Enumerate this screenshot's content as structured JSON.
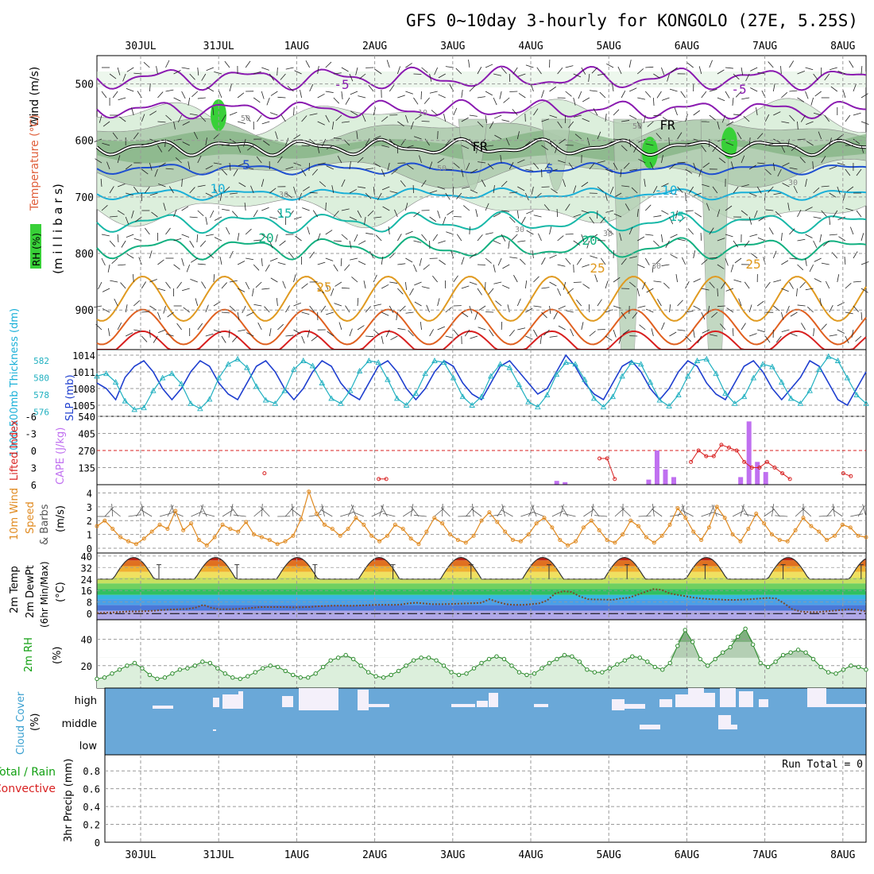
{
  "chart_data": {
    "title": "GFS 0~10day 3-hourly for KONGOLO (27E, 5.25S)",
    "type": "meteogram",
    "x_tick_labels": [
      "30JUL",
      "31JUL",
      "1AUG",
      "2AUG",
      "3AUG",
      "4AUG",
      "5AUG",
      "6AUG",
      "7AUG",
      "8AUG"
    ],
    "colors": {
      "axis": "#000000",
      "grid": "#9a9a9a",
      "purple": "#8a1ab0",
      "blue": "#1f4fd0",
      "cyan": "#1ab0d8",
      "teal": "#18b8a8",
      "green": "#12b080",
      "orange": "#e09a20",
      "dorange": "#e06020",
      "red": "#d82020",
      "rh_light": "#dcefdc",
      "rh_mid": "#b4cfb4",
      "rh_dark": "#7fb07f",
      "rh_bright": "#38d038",
      "cloud_blue": "#6aa8d8",
      "cape": "#c070f0",
      "wind_orange": "#e08a20",
      "slp": "#1f3fcf",
      "thick": "#20b0c0"
    },
    "upper_air": {
      "y_label": "(m i l l i b a r s)",
      "y_label_parts": {
        "rh": "RH (%)",
        "temperature": "Temperature (°C)",
        "wind": "Wind (m/s)"
      },
      "y_ticks": [
        500,
        600,
        700,
        800,
        900
      ],
      "isotherm_labels": [
        "-5",
        "-5",
        "5",
        "5",
        "10",
        "-10",
        "15",
        "15",
        "20",
        "20",
        "25",
        "25",
        "25",
        "FR",
        "FR",
        "50",
        "50",
        "50",
        "30",
        "30",
        "30",
        "10",
        "30",
        "30"
      ]
    },
    "slp_panel": {
      "left_label": "1000-500mb Thickness (dm)",
      "right_label": "SLP (mb)",
      "thickness_ticks": [
        576,
        578,
        580,
        582
      ],
      "slp_ticks": [
        1005,
        1008,
        1011,
        1014
      ],
      "slp_values": [
        1009,
        1008,
        1006,
        1010,
        1012,
        1013,
        1011,
        1008,
        1006,
        1008,
        1011,
        1013,
        1012,
        1009,
        1007,
        1006,
        1009,
        1012,
        1013,
        1011,
        1008,
        1006,
        1008,
        1011,
        1013,
        1012,
        1009,
        1007,
        1006,
        1009,
        1012,
        1013,
        1011,
        1008,
        1006,
        1008,
        1011,
        1013,
        1012,
        1009,
        1007,
        1006,
        1009,
        1012,
        1013,
        1011,
        1009,
        1007,
        1008,
        1011,
        1014,
        1012,
        1009,
        1007,
        1006,
        1009,
        1012,
        1013,
        1011,
        1008,
        1006,
        1008,
        1011,
        1013,
        1012,
        1009,
        1007,
        1006,
        1009,
        1012,
        1013,
        1011,
        1008,
        1006,
        1008,
        1010,
        1013,
        1012,
        1009,
        1006,
        1005,
        1008,
        1011
      ],
      "thickness_values": [
        580.2,
        580.5,
        579.5,
        577.3,
        576.3,
        576.5,
        578.5,
        580,
        580.5,
        579.3,
        577,
        576.4,
        577.5,
        580,
        581.6,
        582.2,
        581.2,
        579,
        577.4,
        577,
        578.5,
        581,
        582,
        581.4,
        579.4,
        577.6,
        577,
        578.5,
        580.8,
        582,
        581.8,
        579.8,
        577.6,
        576.8,
        578.2,
        580.5,
        582,
        581.8,
        580,
        577.8,
        576.8,
        577.8,
        580.2,
        581.6,
        581.2,
        579.2,
        577.2,
        576.6,
        578,
        580.4,
        581.8,
        581.6,
        579.8,
        577.6,
        576.6,
        577.8,
        580.2,
        581.8,
        581.6,
        579.5,
        577.4,
        576.7,
        578,
        580.2,
        582,
        582.2,
        580.5,
        578.2,
        577,
        577.8,
        580,
        581.6,
        581.3,
        579.5,
        577.6,
        577,
        578.5,
        581,
        582.5,
        582,
        580,
        578,
        577
      ]
    },
    "cape_panel": {
      "left_label": "Lifted Index",
      "right_label": "CAPE (J/kg)",
      "li_ticks": [
        "-6",
        "-3",
        "0",
        "3",
        "6"
      ],
      "cape_ticks": [
        135,
        270,
        405,
        540
      ],
      "cape_values": [
        0,
        0,
        0,
        0,
        0,
        0,
        0,
        0,
        0,
        0,
        0,
        0,
        0,
        0,
        0,
        0,
        0,
        0,
        0,
        0,
        0,
        0,
        0,
        0,
        0,
        0,
        0,
        0,
        0,
        0,
        0,
        0,
        0,
        0,
        0,
        0,
        0,
        0,
        0,
        0,
        0,
        0,
        0,
        0,
        0,
        0,
        0,
        0,
        0,
        0,
        0,
        0,
        0,
        0,
        0,
        30,
        20,
        0,
        0,
        0,
        0,
        0,
        0,
        0,
        0,
        0,
        40,
        270,
        120,
        60,
        0,
        0,
        0,
        0,
        0,
        0,
        0,
        60,
        500,
        180,
        100,
        0,
        0,
        0,
        0,
        0,
        0,
        0,
        0,
        0,
        0,
        0,
        0
      ],
      "li_values": [
        6,
        6,
        6,
        6,
        6,
        6,
        6,
        6,
        6,
        6,
        6,
        6,
        6,
        6,
        6,
        6,
        6,
        6,
        6,
        6,
        6,
        6,
        4,
        6,
        6,
        6,
        6,
        6,
        6,
        6,
        6,
        6,
        6,
        6,
        6,
        6,
        6,
        5,
        5,
        6,
        6,
        6,
        6,
        6,
        6,
        6,
        6,
        6,
        6,
        6,
        6,
        6,
        6,
        6,
        6,
        6,
        6,
        6,
        6,
        6,
        6,
        6,
        6,
        6,
        6,
        6,
        1.4,
        1.4,
        5,
        6,
        6,
        6,
        6,
        6,
        6,
        6,
        6,
        6,
        2,
        0,
        1,
        1,
        -1,
        -0.5,
        0,
        2,
        3,
        3,
        2,
        3,
        4,
        5,
        6,
        6,
        6,
        6,
        6,
        6,
        4,
        4.5,
        6,
        6
      ]
    },
    "wind_panel": {
      "label": "10m Wind Speed & Barbs (m/s)",
      "label_parts": {
        "a": "10m Wind",
        "b": "Speed",
        "c": "& Barbs"
      },
      "y_ticks": [
        0,
        1,
        2,
        3,
        4
      ],
      "values": [
        1.6,
        2,
        1.4,
        0.8,
        0.5,
        0.3,
        0.7,
        1.2,
        1.7,
        1.4,
        2.7,
        1.3,
        1.8,
        0.6,
        0.2,
        0.8,
        1.7,
        1.4,
        1.2,
        1.9,
        1.0,
        0.8,
        0.6,
        0.3,
        0.5,
        0.9,
        2.1,
        4.1,
        2.5,
        1.7,
        1.4,
        0.9,
        1.4,
        2.2,
        1.7,
        0.9,
        0.5,
        0.9,
        1.7,
        1.4,
        0.7,
        0.3,
        1.2,
        2.2,
        1.8,
        1.0,
        0.6,
        0.4,
        0.9,
        2.0,
        2.6,
        1.9,
        1.2,
        0.6,
        0.5,
        1.0,
        1.8,
        2.2,
        1.5,
        0.6,
        0.2,
        0.5,
        1.5,
        2.0,
        1.3,
        0.6,
        0.4,
        1.0,
        2.0,
        1.6,
        0.8,
        0.4,
        0.9,
        1.7,
        2.9,
        2.2,
        1.2,
        0.6,
        1.5,
        3.0,
        2.2,
        1.0,
        0.5,
        1.4,
        2.5,
        1.8,
        1.0,
        0.6,
        0.5,
        1.3,
        2.2,
        1.6,
        1.2,
        0.6,
        0.9,
        1.7,
        1.5,
        0.9,
        0.8
      ]
    },
    "temp_panel": {
      "label_parts": {
        "temp": "2m Temp",
        "dewpt": "2m DewPt",
        "minmax": "(6hr Min/Max)",
        "unit": "(°C)"
      },
      "y_ticks": [
        0,
        8,
        16,
        24,
        32,
        40
      ],
      "dewpoint": [
        0.3,
        0.5,
        0.8,
        1.2,
        1.5,
        1.5,
        1.7,
        2,
        2.5,
        2.8,
        3,
        3.2,
        4,
        6,
        4,
        3,
        3,
        3.2,
        3.5,
        4,
        4.5,
        4.5,
        4.5,
        4.5,
        4.3,
        4.4,
        4.6,
        5,
        5.3,
        5.5,
        5.5,
        5.4,
        5.6,
        5.8,
        6,
        6,
        6,
        6.2,
        7,
        7.5,
        7,
        6.5,
        6.5,
        6.6,
        6.8,
        7,
        7.2,
        7.5,
        10,
        8,
        6.5,
        6,
        6,
        6.5,
        7,
        9,
        14,
        15.5,
        15,
        12,
        10,
        9.8,
        9.7,
        9.5,
        10.5,
        11,
        13,
        15,
        17,
        16.5,
        14,
        13,
        12,
        11,
        10.5,
        10,
        9.8,
        9.5,
        9.5,
        9.7,
        10,
        10.5,
        10.8,
        10.5,
        7,
        3,
        1.5,
        1,
        1,
        1.5,
        2,
        2.5,
        3,
        2.5,
        1.5
      ]
    },
    "rh_panel": {
      "label": "2m RH",
      "unit": "(%)",
      "y_ticks": [
        20,
        40
      ],
      "values": [
        10,
        11,
        14,
        17,
        20,
        22,
        18,
        13,
        10,
        11,
        14,
        17,
        18,
        20,
        23,
        22,
        18,
        14,
        11,
        10,
        12,
        15,
        18,
        20,
        19,
        16,
        13,
        11,
        11,
        14,
        19,
        24,
        26,
        28,
        25,
        20,
        15,
        12,
        11,
        13,
        16,
        20,
        24,
        26,
        26,
        24,
        20,
        15,
        13,
        14,
        18,
        22,
        25,
        27,
        25,
        20,
        15,
        13,
        14,
        18,
        22,
        25,
        28,
        27,
        23,
        17,
        15,
        15,
        18,
        21,
        24,
        27,
        26,
        23,
        19,
        17,
        22,
        35,
        47,
        38,
        25,
        20,
        25,
        30,
        34,
        42,
        48,
        36,
        22,
        19,
        23,
        28,
        30,
        32,
        30,
        25,
        19,
        15,
        14,
        17,
        20,
        19,
        17
      ]
    },
    "cloud_panel": {
      "label": "Cloud Cover",
      "unit": "(%)",
      "levels": [
        "high",
        "middle",
        "low"
      ]
    },
    "precip_panel": {
      "label_parts": {
        "total": "Total / Rain",
        "conv": "Convective",
        "y": "3hr Precip (mm)"
      },
      "run_total": "Run Total = 0",
      "y_ticks": [
        "0",
        "0.2",
        "0.4",
        "0.6",
        "0.8"
      ]
    }
  }
}
